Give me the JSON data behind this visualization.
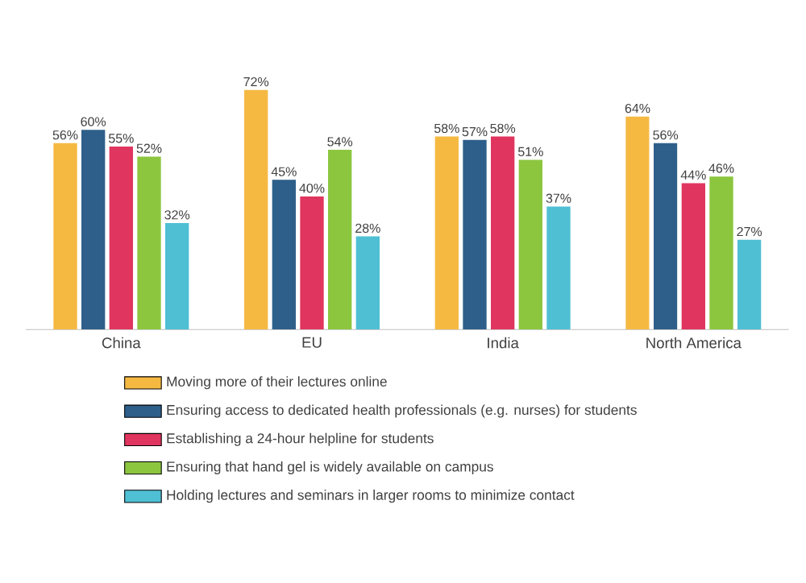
{
  "chart_data": {
    "type": "bar",
    "categories": [
      "China",
      "EU",
      "India",
      "North America"
    ],
    "series": [
      {
        "name": "Moving more of their lectures online",
        "color": "#f5b942",
        "values": [
          56,
          72,
          58,
          64
        ],
        "value_labels": [
          "56%",
          "72%",
          "58%",
          "64%"
        ]
      },
      {
        "name": "Ensuring access to dedicated health professionals (e.g. nurses) for students",
        "color": "#2e5f8a",
        "values": [
          60,
          45,
          57,
          56
        ],
        "value_labels": [
          "60%",
          "45%",
          "57%",
          "56%"
        ]
      },
      {
        "name": "Establishing a 24-hour helpline for students",
        "color": "#e0355f",
        "values": [
          55,
          40,
          58,
          44
        ],
        "value_labels": [
          "55%",
          "40%",
          "58%",
          "44%"
        ]
      },
      {
        "name": "Ensuring that hand gel is widely available on campus",
        "color": "#8cc63f",
        "values": [
          52,
          54,
          51,
          46
        ],
        "value_labels": [
          "52%",
          "54%",
          "51%",
          "46%"
        ]
      },
      {
        "name": "Holding lectures and seminars in larger rooms to minimize contact",
        "color": "#4fbfd4",
        "values": [
          32,
          28,
          37,
          27
        ],
        "value_labels": [
          "32%",
          "28%",
          "37%",
          "27%"
        ]
      }
    ],
    "legend": "bottom"
  }
}
